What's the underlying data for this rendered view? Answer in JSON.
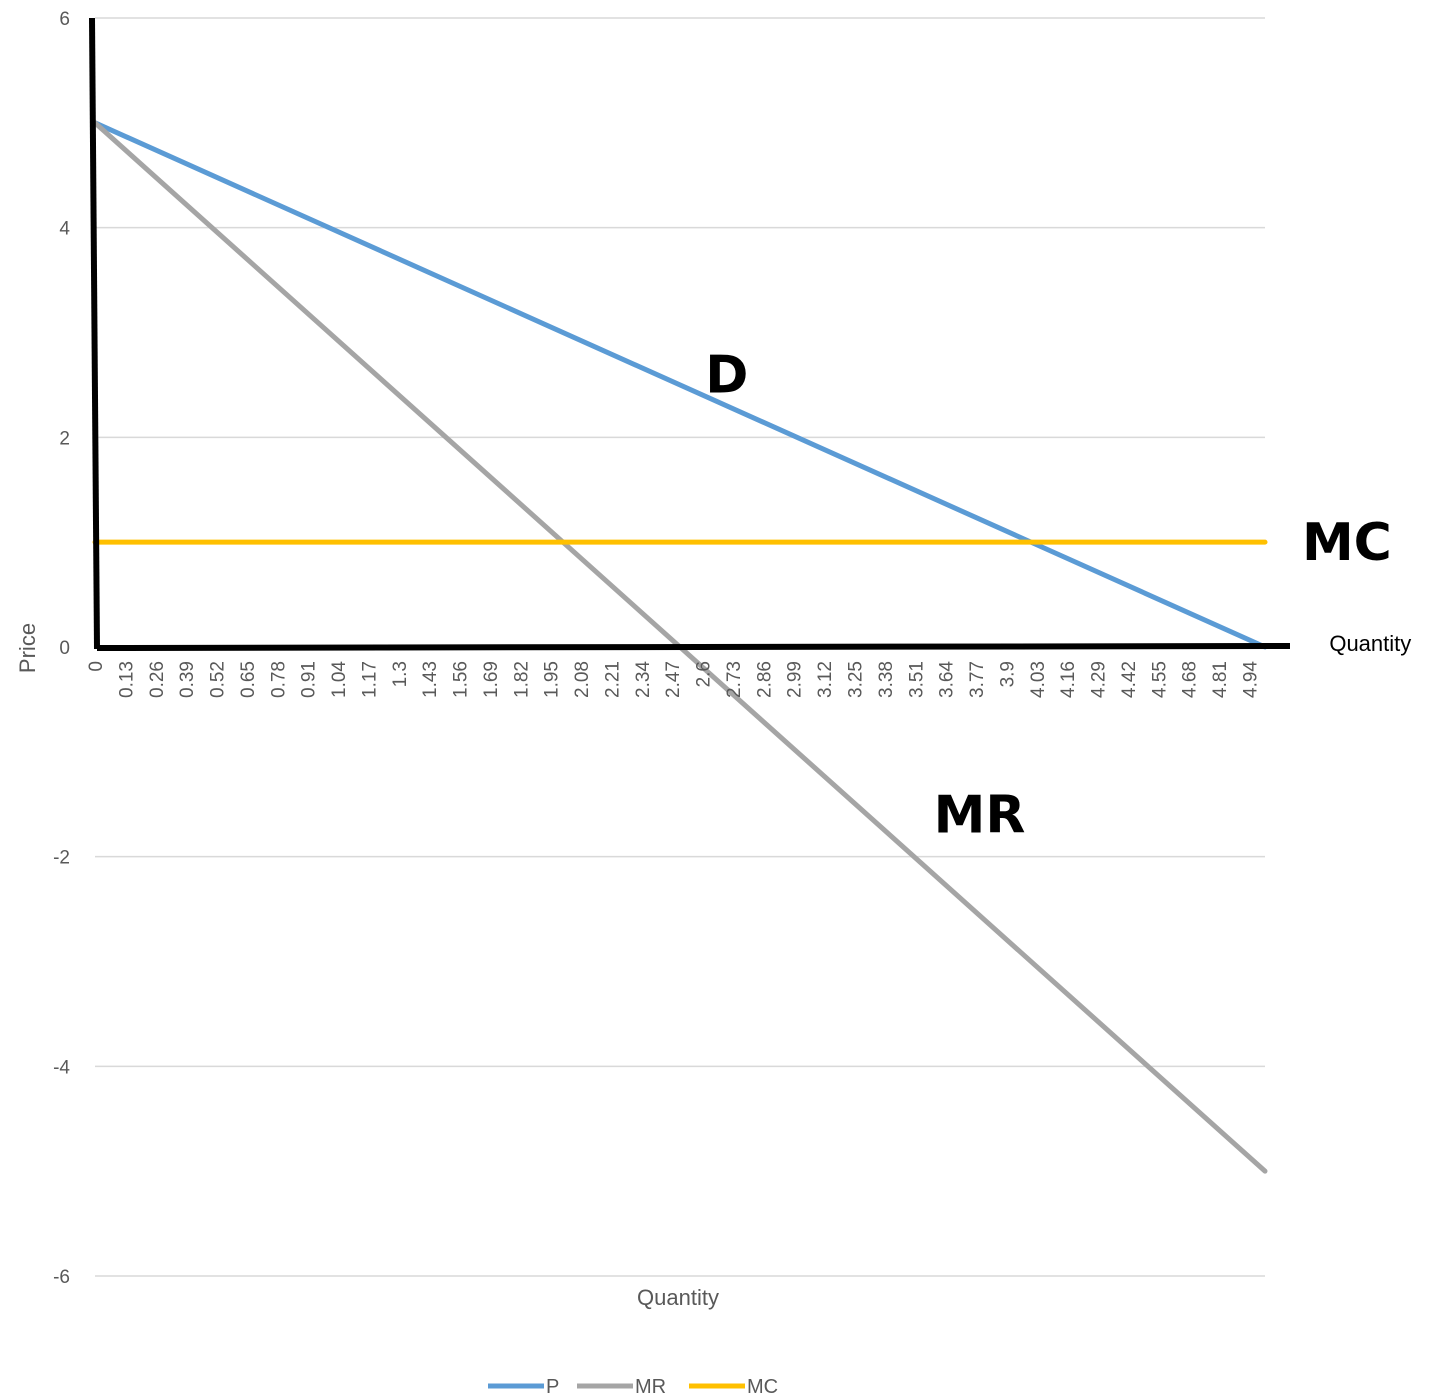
{
  "chart_data": {
    "type": "line",
    "title": "",
    "xlabel": "Quantity",
    "ylabel": "Price",
    "ylim": [
      -6,
      6
    ],
    "yticks": [
      "-6",
      "-4",
      "-2",
      "0",
      "2",
      "4",
      "6"
    ],
    "x_tick_labels": [
      "0",
      "0.13",
      "0.26",
      "0.39",
      "0.52",
      "0.65",
      "0.78",
      "0.91",
      "1.04",
      "1.17",
      "1.3",
      "1.43",
      "1.56",
      "1.69",
      "1.82",
      "1.95",
      "2.08",
      "2.21",
      "2.34",
      "2.47",
      "2.6",
      "2.73",
      "2.86",
      "2.99",
      "3.12",
      "3.25",
      "3.38",
      "3.51",
      "3.64",
      "3.77",
      "3.9",
      "4.03",
      "4.16",
      "4.29",
      "4.42",
      "4.55",
      "4.68",
      "4.81",
      "4.94"
    ],
    "xlim": [
      0,
      5
    ],
    "grid": true,
    "legend_position": "bottom",
    "series": [
      {
        "name": "P",
        "color": "#5B9BD5",
        "x": [
          0,
          5
        ],
        "y": [
          5,
          0
        ]
      },
      {
        "name": "MR",
        "color": "#A5A5A5",
        "x": [
          0,
          5
        ],
        "y": [
          5,
          -5
        ]
      },
      {
        "name": "MC",
        "color": "#FFC000",
        "x": [
          0,
          5
        ],
        "y": [
          1,
          1
        ]
      }
    ],
    "annotations": [
      {
        "text": "D",
        "x": 2.7,
        "y": 2.6
      },
      {
        "text": "MC",
        "x": 5.35,
        "y": 1.0
      },
      {
        "text": "MR",
        "x": 3.78,
        "y": -1.6
      },
      {
        "text": "Quantity",
        "x": 5.45,
        "y": 0
      }
    ]
  }
}
